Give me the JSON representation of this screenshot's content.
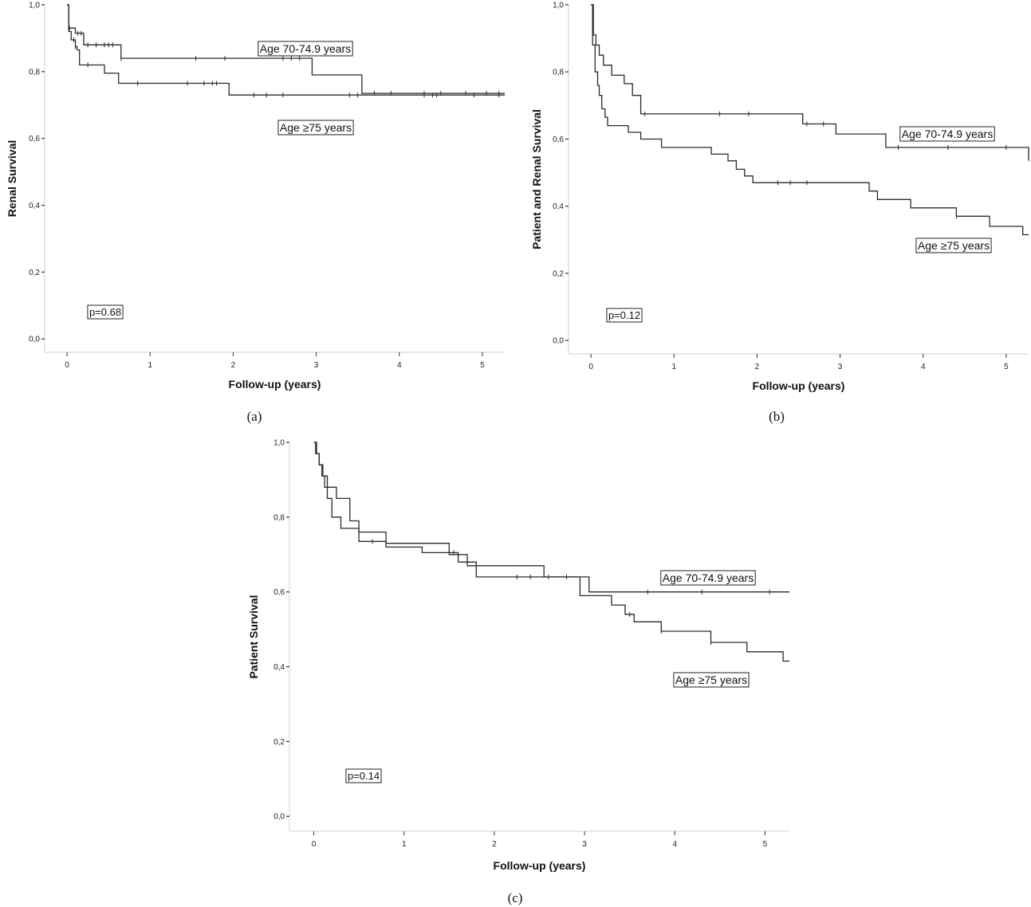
{
  "chart_data": [
    {
      "type": "line",
      "panel_label": "(a)",
      "xlabel": "Follow-up (years)",
      "ylabel": "Renal Survival",
      "xlim": [
        -0.27,
        5.27
      ],
      "ylim": [
        -0.04,
        1.0
      ],
      "x_ticks": [
        0,
        1,
        2,
        3,
        4,
        5
      ],
      "y_ticks": [
        0.0,
        0.2,
        0.4,
        0.6,
        0.8,
        1.0
      ],
      "x_tick_labels": [
        "0",
        "1",
        "2",
        "3",
        "4",
        "5"
      ],
      "y_tick_labels": [
        "0,0",
        "0,2",
        "0,4",
        "0,6",
        "0,8",
        "1,0"
      ],
      "annotation": "p=0.68",
      "series": [
        {
          "name": "Age 70-74.9 years",
          "x": [
            0,
            0.02,
            0.1,
            0.2,
            0.65,
            2.95,
            3.55,
            5.27
          ],
          "y": [
            1.0,
            0.93,
            0.915,
            0.88,
            0.84,
            0.79,
            0.735,
            0.735
          ],
          "censor_x": [
            0.03,
            0.13,
            0.17,
            0.25,
            0.35,
            0.45,
            0.5,
            0.55,
            0.65,
            1.55,
            1.9,
            2.6,
            2.7,
            2.8,
            3.7,
            3.9,
            4.3,
            4.5,
            4.8,
            5.05,
            5.2
          ]
        },
        {
          "name": "Age ≥75 years",
          "x": [
            0,
            0.02,
            0.05,
            0.1,
            0.12,
            0.15,
            0.18,
            0.45,
            0.62,
            1.95,
            5.27
          ],
          "y": [
            1.0,
            0.92,
            0.895,
            0.875,
            0.865,
            0.82,
            0.82,
            0.795,
            0.765,
            0.73,
            0.73
          ],
          "censor_x": [
            0.08,
            0.1,
            0.25,
            0.85,
            1.45,
            1.65,
            1.75,
            1.8,
            2.25,
            2.4,
            2.6,
            3.4,
            3.5,
            4.3,
            4.4,
            4.45,
            4.9,
            5.2
          ]
        }
      ]
    },
    {
      "type": "line",
      "panel_label": "(b)",
      "xlabel": "Follow-up (years)",
      "ylabel": "Patient and Renal  Survival",
      "xlim": [
        -0.27,
        5.27
      ],
      "ylim": [
        -0.04,
        1.0
      ],
      "x_ticks": [
        0,
        1,
        2,
        3,
        4,
        5
      ],
      "y_ticks": [
        0.0,
        0.2,
        0.4,
        0.6,
        0.8,
        1.0
      ],
      "x_tick_labels": [
        "0",
        "1",
        "2",
        "3",
        "4",
        "5"
      ],
      "y_tick_labels": [
        "0,0",
        "0,2",
        "0,4",
        "0,6",
        "0,8",
        "1,0"
      ],
      "annotation": "p=0.12",
      "series": [
        {
          "name": "Age 70-74.9 years",
          "x": [
            0,
            0.03,
            0.06,
            0.1,
            0.15,
            0.25,
            0.4,
            0.5,
            0.6,
            2.55,
            2.95,
            3.55,
            5.27
          ],
          "y": [
            1.0,
            0.91,
            0.88,
            0.85,
            0.82,
            0.79,
            0.765,
            0.73,
            0.675,
            0.645,
            0.615,
            0.575,
            0.535
          ],
          "censor_x": [
            0.65,
            1.55,
            1.9,
            2.6,
            2.8,
            3.7,
            4.3,
            5.0
          ]
        },
        {
          "name": "Age ≥75 years",
          "x": [
            0,
            0.02,
            0.05,
            0.08,
            0.1,
            0.13,
            0.17,
            0.2,
            0.45,
            0.6,
            0.85,
            1.45,
            1.65,
            1.75,
            1.85,
            1.95,
            3.35,
            3.45,
            3.85,
            4.4,
            4.8,
            5.2,
            5.27
          ],
          "y": [
            1.0,
            0.88,
            0.8,
            0.76,
            0.73,
            0.69,
            0.665,
            0.64,
            0.62,
            0.6,
            0.575,
            0.555,
            0.535,
            0.51,
            0.49,
            0.47,
            0.445,
            0.42,
            0.395,
            0.37,
            0.34,
            0.315,
            0.315
          ],
          "censor_x": [
            2.25,
            2.4,
            2.6,
            4.4
          ]
        }
      ]
    },
    {
      "type": "line",
      "panel_label": "(c)",
      "xlabel": "Follow-up (years)",
      "ylabel": "Patient Survival",
      "xlim": [
        -0.27,
        5.27
      ],
      "ylim": [
        -0.04,
        1.0
      ],
      "x_ticks": [
        0,
        1,
        2,
        3,
        4,
        5
      ],
      "y_ticks": [
        0.0,
        0.2,
        0.4,
        0.6,
        0.8,
        1.0
      ],
      "x_tick_labels": [
        "0",
        "1",
        "2",
        "3",
        "4",
        "5"
      ],
      "y_tick_labels": [
        "0,0",
        "0,2",
        "0,4",
        "0,6",
        "0,8",
        "1,0"
      ],
      "annotation": "p=0.14",
      "series": [
        {
          "name": "Age 70-74.9 years",
          "x": [
            0,
            0.02,
            0.06,
            0.1,
            0.15,
            0.25,
            0.4,
            0.5,
            0.8,
            1.5,
            1.7,
            2.55,
            3.05,
            5.27
          ],
          "y": [
            1.0,
            0.97,
            0.94,
            0.91,
            0.88,
            0.85,
            0.79,
            0.76,
            0.73,
            0.7,
            0.67,
            0.64,
            0.6,
            0.6
          ],
          "censor_x": [
            3.7,
            4.3,
            5.05
          ]
        },
        {
          "name": "Age ≥75 years",
          "x": [
            0,
            0.03,
            0.06,
            0.09,
            0.12,
            0.15,
            0.2,
            0.3,
            0.5,
            0.8,
            1.2,
            1.6,
            1.8,
            2.95,
            3.3,
            3.45,
            3.55,
            3.85,
            4.4,
            4.8,
            5.2,
            5.27
          ],
          "y": [
            1.0,
            0.97,
            0.94,
            0.91,
            0.88,
            0.85,
            0.8,
            0.77,
            0.735,
            0.72,
            0.705,
            0.68,
            0.64,
            0.59,
            0.565,
            0.54,
            0.52,
            0.495,
            0.465,
            0.44,
            0.415,
            0.415
          ],
          "censor_x": [
            0.65,
            1.55,
            2.25,
            2.4,
            2.6,
            2.8,
            3.5,
            3.85,
            4.4
          ]
        }
      ]
    }
  ]
}
